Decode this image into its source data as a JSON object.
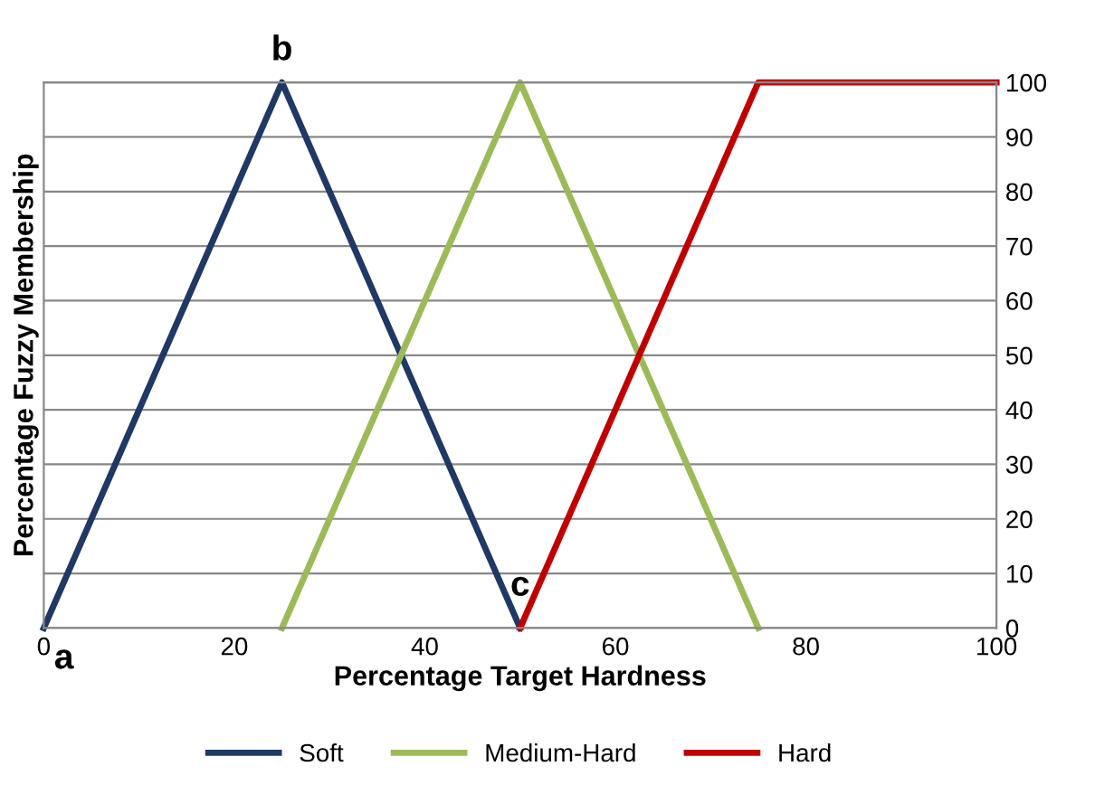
{
  "chart_data": {
    "type": "line",
    "xlabel": "Percentage Target Hardness",
    "ylabel": "Percentage Fuzzy Membership",
    "xlim": [
      0,
      100
    ],
    "xticks": [
      0,
      20,
      40,
      60,
      80,
      100
    ],
    "ylim": [
      0,
      100
    ],
    "yticks": [
      0,
      10,
      20,
      30,
      40,
      50,
      60,
      70,
      80,
      90,
      100
    ],
    "grid": "y",
    "legend": "bottom",
    "marker": "none",
    "line_style": "solid",
    "series": [
      {
        "name": "Soft",
        "color": "#1f3864",
        "x": [
          0,
          25,
          50
        ],
        "values": [
          0,
          100,
          0
        ]
      },
      {
        "name": "Medium-Hard",
        "color": "#9bbb59",
        "x": [
          25,
          50,
          75
        ],
        "values": [
          0,
          100,
          0
        ]
      },
      {
        "name": "Hard",
        "color": "#c00000",
        "x": [
          50,
          75,
          100
        ],
        "values": [
          0,
          100,
          100
        ]
      }
    ],
    "annotations": [
      {
        "text": "a",
        "x": 0,
        "y": 0
      },
      {
        "text": "b",
        "x": 25,
        "y": 100
      },
      {
        "text": "c",
        "x": 50,
        "y": 0
      }
    ]
  }
}
